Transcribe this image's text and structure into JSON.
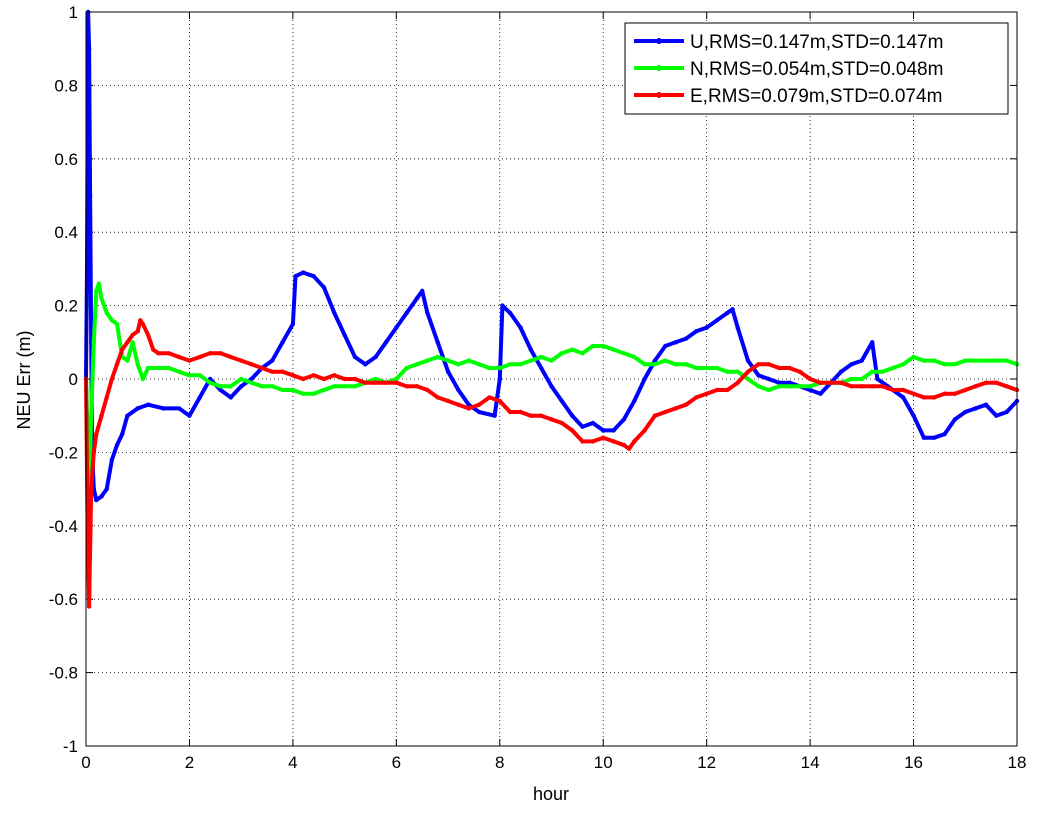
{
  "chart_data": {
    "type": "line",
    "title": "",
    "xlabel": "hour",
    "ylabel": "NEU Err (m)",
    "xlim": [
      0,
      18
    ],
    "ylim": [
      -1,
      1
    ],
    "xticks": [
      "0",
      "2",
      "4",
      "6",
      "8",
      "10",
      "12",
      "14",
      "16",
      "18"
    ],
    "yticks": [
      "-1",
      "-0.8",
      "-0.6",
      "-0.4",
      "-0.2",
      "0",
      "0.2",
      "0.4",
      "0.6",
      "0.8",
      "1"
    ],
    "grid": true,
    "legend_position": "top-right",
    "series": [
      {
        "name": "U,RMS=0.147m,STD=0.147m",
        "color": "#0000ff",
        "points": [
          [
            0,
            0
          ],
          [
            0.02,
            0.3
          ],
          [
            0.04,
            1.0
          ],
          [
            0.06,
            0.9
          ],
          [
            0.08,
            0.5
          ],
          [
            0.1,
            0.1
          ],
          [
            0.12,
            -0.2
          ],
          [
            0.15,
            -0.3
          ],
          [
            0.2,
            -0.33
          ],
          [
            0.3,
            -0.32
          ],
          [
            0.4,
            -0.3
          ],
          [
            0.5,
            -0.22
          ],
          [
            0.6,
            -0.18
          ],
          [
            0.7,
            -0.15
          ],
          [
            0.8,
            -0.1
          ],
          [
            1.0,
            -0.08
          ],
          [
            1.2,
            -0.07
          ],
          [
            1.5,
            -0.08
          ],
          [
            1.8,
            -0.08
          ],
          [
            2.0,
            -0.1
          ],
          [
            2.2,
            -0.05
          ],
          [
            2.4,
            0.0
          ],
          [
            2.6,
            -0.03
          ],
          [
            2.8,
            -0.05
          ],
          [
            3.0,
            -0.02
          ],
          [
            3.2,
            0.0
          ],
          [
            3.4,
            0.03
          ],
          [
            3.6,
            0.05
          ],
          [
            3.8,
            0.1
          ],
          [
            4.0,
            0.15
          ],
          [
            4.05,
            0.28
          ],
          [
            4.2,
            0.29
          ],
          [
            4.4,
            0.28
          ],
          [
            4.6,
            0.25
          ],
          [
            4.8,
            0.18
          ],
          [
            5.0,
            0.12
          ],
          [
            5.2,
            0.06
          ],
          [
            5.4,
            0.04
          ],
          [
            5.6,
            0.06
          ],
          [
            5.8,
            0.1
          ],
          [
            6.0,
            0.14
          ],
          [
            6.2,
            0.18
          ],
          [
            6.4,
            0.22
          ],
          [
            6.5,
            0.24
          ],
          [
            6.6,
            0.18
          ],
          [
            6.8,
            0.1
          ],
          [
            7.0,
            0.02
          ],
          [
            7.2,
            -0.03
          ],
          [
            7.4,
            -0.07
          ],
          [
            7.6,
            -0.09
          ],
          [
            7.9,
            -0.1
          ],
          [
            8.0,
            0.0
          ],
          [
            8.05,
            0.2
          ],
          [
            8.2,
            0.18
          ],
          [
            8.4,
            0.14
          ],
          [
            8.6,
            0.08
          ],
          [
            8.8,
            0.03
          ],
          [
            9.0,
            -0.02
          ],
          [
            9.2,
            -0.06
          ],
          [
            9.4,
            -0.1
          ],
          [
            9.6,
            -0.13
          ],
          [
            9.8,
            -0.12
          ],
          [
            10.0,
            -0.14
          ],
          [
            10.2,
            -0.14
          ],
          [
            10.4,
            -0.11
          ],
          [
            10.6,
            -0.06
          ],
          [
            10.8,
            0.0
          ],
          [
            11.0,
            0.05
          ],
          [
            11.2,
            0.09
          ],
          [
            11.4,
            0.1
          ],
          [
            11.6,
            0.11
          ],
          [
            11.8,
            0.13
          ],
          [
            12.0,
            0.14
          ],
          [
            12.2,
            0.16
          ],
          [
            12.4,
            0.18
          ],
          [
            12.5,
            0.19
          ],
          [
            12.6,
            0.14
          ],
          [
            12.8,
            0.05
          ],
          [
            13.0,
            0.01
          ],
          [
            13.2,
            0.0
          ],
          [
            13.4,
            -0.01
          ],
          [
            13.6,
            -0.01
          ],
          [
            13.8,
            -0.02
          ],
          [
            14.0,
            -0.03
          ],
          [
            14.2,
            -0.04
          ],
          [
            14.4,
            -0.01
          ],
          [
            14.6,
            0.02
          ],
          [
            14.8,
            0.04
          ],
          [
            15.0,
            0.05
          ],
          [
            15.2,
            0.1
          ],
          [
            15.3,
            0.0
          ],
          [
            15.5,
            -0.02
          ],
          [
            15.8,
            -0.05
          ],
          [
            16.0,
            -0.1
          ],
          [
            16.2,
            -0.16
          ],
          [
            16.4,
            -0.16
          ],
          [
            16.6,
            -0.15
          ],
          [
            16.8,
            -0.11
          ],
          [
            17.0,
            -0.09
          ],
          [
            17.2,
            -0.08
          ],
          [
            17.4,
            -0.07
          ],
          [
            17.6,
            -0.1
          ],
          [
            17.8,
            -0.09
          ],
          [
            18.0,
            -0.06
          ]
        ]
      },
      {
        "name": "N,RMS=0.054m,STD=0.048m",
        "color": "#00ff00",
        "points": [
          [
            0,
            0
          ],
          [
            0.03,
            -0.15
          ],
          [
            0.06,
            -0.3
          ],
          [
            0.1,
            -0.1
          ],
          [
            0.15,
            0.1
          ],
          [
            0.2,
            0.24
          ],
          [
            0.25,
            0.26
          ],
          [
            0.3,
            0.22
          ],
          [
            0.4,
            0.18
          ],
          [
            0.5,
            0.16
          ],
          [
            0.6,
            0.15
          ],
          [
            0.7,
            0.06
          ],
          [
            0.8,
            0.05
          ],
          [
            0.9,
            0.1
          ],
          [
            1.0,
            0.04
          ],
          [
            1.1,
            0.0
          ],
          [
            1.2,
            0.03
          ],
          [
            1.4,
            0.03
          ],
          [
            1.6,
            0.03
          ],
          [
            1.8,
            0.02
          ],
          [
            2.0,
            0.01
          ],
          [
            2.2,
            0.01
          ],
          [
            2.4,
            -0.01
          ],
          [
            2.6,
            -0.02
          ],
          [
            2.8,
            -0.02
          ],
          [
            3.0,
            0.0
          ],
          [
            3.2,
            -0.01
          ],
          [
            3.4,
            -0.02
          ],
          [
            3.6,
            -0.02
          ],
          [
            3.8,
            -0.03
          ],
          [
            4.0,
            -0.03
          ],
          [
            4.2,
            -0.04
          ],
          [
            4.4,
            -0.04
          ],
          [
            4.6,
            -0.03
          ],
          [
            4.8,
            -0.02
          ],
          [
            5.0,
            -0.02
          ],
          [
            5.2,
            -0.02
          ],
          [
            5.4,
            -0.01
          ],
          [
            5.6,
            0.0
          ],
          [
            5.8,
            -0.01
          ],
          [
            6.0,
            0.0
          ],
          [
            6.2,
            0.03
          ],
          [
            6.4,
            0.04
          ],
          [
            6.6,
            0.05
          ],
          [
            6.8,
            0.06
          ],
          [
            7.0,
            0.05
          ],
          [
            7.2,
            0.04
          ],
          [
            7.4,
            0.05
          ],
          [
            7.6,
            0.04
          ],
          [
            7.8,
            0.03
          ],
          [
            8.0,
            0.03
          ],
          [
            8.2,
            0.04
          ],
          [
            8.4,
            0.04
          ],
          [
            8.6,
            0.05
          ],
          [
            8.8,
            0.06
          ],
          [
            9.0,
            0.05
          ],
          [
            9.2,
            0.07
          ],
          [
            9.4,
            0.08
          ],
          [
            9.6,
            0.07
          ],
          [
            9.8,
            0.09
          ],
          [
            10.0,
            0.09
          ],
          [
            10.2,
            0.08
          ],
          [
            10.4,
            0.07
          ],
          [
            10.6,
            0.06
          ],
          [
            10.8,
            0.04
          ],
          [
            11.0,
            0.04
          ],
          [
            11.2,
            0.05
          ],
          [
            11.4,
            0.04
          ],
          [
            11.6,
            0.04
          ],
          [
            11.8,
            0.03
          ],
          [
            12.0,
            0.03
          ],
          [
            12.2,
            0.03
          ],
          [
            12.4,
            0.02
          ],
          [
            12.6,
            0.02
          ],
          [
            12.8,
            0.0
          ],
          [
            13.0,
            -0.02
          ],
          [
            13.2,
            -0.03
          ],
          [
            13.4,
            -0.02
          ],
          [
            13.6,
            -0.02
          ],
          [
            13.8,
            -0.02
          ],
          [
            14.0,
            -0.02
          ],
          [
            14.2,
            -0.01
          ],
          [
            14.4,
            -0.01
          ],
          [
            14.6,
            -0.01
          ],
          [
            14.8,
            0.0
          ],
          [
            15.0,
            0.0
          ],
          [
            15.2,
            0.02
          ],
          [
            15.4,
            0.02
          ],
          [
            15.6,
            0.03
          ],
          [
            15.8,
            0.04
          ],
          [
            16.0,
            0.06
          ],
          [
            16.2,
            0.05
          ],
          [
            16.4,
            0.05
          ],
          [
            16.6,
            0.04
          ],
          [
            16.8,
            0.04
          ],
          [
            17.0,
            0.05
          ],
          [
            17.2,
            0.05
          ],
          [
            17.4,
            0.05
          ],
          [
            17.6,
            0.05
          ],
          [
            17.8,
            0.05
          ],
          [
            18.0,
            0.04
          ]
        ]
      },
      {
        "name": "E,RMS=0.079m,STD=0.074m",
        "color": "#ff0000",
        "points": [
          [
            0,
            0
          ],
          [
            0.03,
            -0.4
          ],
          [
            0.06,
            -0.62
          ],
          [
            0.1,
            -0.3
          ],
          [
            0.15,
            -0.2
          ],
          [
            0.2,
            -0.15
          ],
          [
            0.3,
            -0.1
          ],
          [
            0.4,
            -0.05
          ],
          [
            0.5,
            0.0
          ],
          [
            0.6,
            0.04
          ],
          [
            0.7,
            0.08
          ],
          [
            0.8,
            0.1
          ],
          [
            0.9,
            0.12
          ],
          [
            1.0,
            0.13
          ],
          [
            1.05,
            0.16
          ],
          [
            1.1,
            0.15
          ],
          [
            1.2,
            0.12
          ],
          [
            1.3,
            0.08
          ],
          [
            1.4,
            0.07
          ],
          [
            1.6,
            0.07
          ],
          [
            1.8,
            0.06
          ],
          [
            2.0,
            0.05
          ],
          [
            2.2,
            0.06
          ],
          [
            2.4,
            0.07
          ],
          [
            2.6,
            0.07
          ],
          [
            2.8,
            0.06
          ],
          [
            3.0,
            0.05
          ],
          [
            3.2,
            0.04
          ],
          [
            3.4,
            0.03
          ],
          [
            3.6,
            0.02
          ],
          [
            3.8,
            0.02
          ],
          [
            4.0,
            0.01
          ],
          [
            4.2,
            0.0
          ],
          [
            4.4,
            0.01
          ],
          [
            4.6,
            0.0
          ],
          [
            4.8,
            0.01
          ],
          [
            5.0,
            0.0
          ],
          [
            5.2,
            0.0
          ],
          [
            5.4,
            -0.01
          ],
          [
            5.6,
            -0.01
          ],
          [
            5.8,
            -0.01
          ],
          [
            6.0,
            -0.01
          ],
          [
            6.2,
            -0.02
          ],
          [
            6.4,
            -0.02
          ],
          [
            6.6,
            -0.03
          ],
          [
            6.8,
            -0.05
          ],
          [
            7.0,
            -0.06
          ],
          [
            7.2,
            -0.07
          ],
          [
            7.4,
            -0.08
          ],
          [
            7.6,
            -0.07
          ],
          [
            7.8,
            -0.05
          ],
          [
            8.0,
            -0.06
          ],
          [
            8.2,
            -0.09
          ],
          [
            8.4,
            -0.09
          ],
          [
            8.6,
            -0.1
          ],
          [
            8.8,
            -0.1
          ],
          [
            9.0,
            -0.11
          ],
          [
            9.2,
            -0.12
          ],
          [
            9.4,
            -0.14
          ],
          [
            9.6,
            -0.17
          ],
          [
            9.8,
            -0.17
          ],
          [
            10.0,
            -0.16
          ],
          [
            10.2,
            -0.17
          ],
          [
            10.4,
            -0.18
          ],
          [
            10.5,
            -0.19
          ],
          [
            10.6,
            -0.17
          ],
          [
            10.8,
            -0.14
          ],
          [
            11.0,
            -0.1
          ],
          [
            11.2,
            -0.09
          ],
          [
            11.4,
            -0.08
          ],
          [
            11.6,
            -0.07
          ],
          [
            11.8,
            -0.05
          ],
          [
            12.0,
            -0.04
          ],
          [
            12.2,
            -0.03
          ],
          [
            12.4,
            -0.03
          ],
          [
            12.6,
            -0.01
          ],
          [
            12.8,
            0.02
          ],
          [
            13.0,
            0.04
          ],
          [
            13.2,
            0.04
          ],
          [
            13.4,
            0.03
          ],
          [
            13.6,
            0.03
          ],
          [
            13.8,
            0.02
          ],
          [
            14.0,
            0.0
          ],
          [
            14.2,
            -0.01
          ],
          [
            14.4,
            -0.01
          ],
          [
            14.6,
            -0.01
          ],
          [
            14.8,
            -0.02
          ],
          [
            15.0,
            -0.02
          ],
          [
            15.2,
            -0.02
          ],
          [
            15.4,
            -0.02
          ],
          [
            15.6,
            -0.03
          ],
          [
            15.8,
            -0.03
          ],
          [
            16.0,
            -0.04
          ],
          [
            16.2,
            -0.05
          ],
          [
            16.4,
            -0.05
          ],
          [
            16.6,
            -0.04
          ],
          [
            16.8,
            -0.04
          ],
          [
            17.0,
            -0.03
          ],
          [
            17.2,
            -0.02
          ],
          [
            17.4,
            -0.01
          ],
          [
            17.6,
            -0.01
          ],
          [
            17.8,
            -0.02
          ],
          [
            18.0,
            -0.03
          ]
        ]
      }
    ]
  }
}
